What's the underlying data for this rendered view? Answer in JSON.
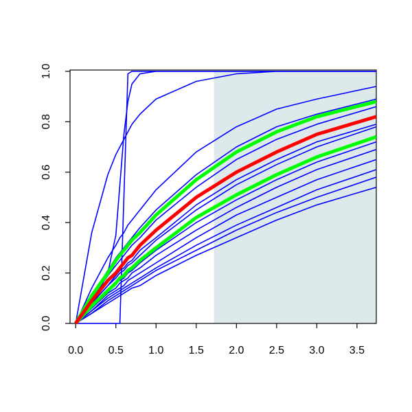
{
  "chart_data": {
    "type": "line",
    "x": [
      0,
      0.2,
      0.4,
      0.5,
      0.55,
      0.6,
      0.65,
      0.7,
      0.8,
      1,
      1.5,
      2,
      2.5,
      3,
      3.74
    ],
    "xlim": [
      -0.07,
      3.74
    ],
    "ylim": [
      0,
      1.005
    ],
    "xticks": [
      {
        "value": 0,
        "label": "0.0"
      },
      0.5,
      {
        "value": 1,
        "label": "1.0"
      },
      1.5,
      {
        "value": 2,
        "label": "2.0"
      },
      2.5,
      {
        "value": 3,
        "label": "3.0"
      },
      3.5
    ],
    "yticks": [
      {
        "value": 0,
        "label": "0.0"
      },
      0.2,
      0.4,
      0.6,
      0.8,
      {
        "value": 1,
        "label": "1.0"
      }
    ],
    "shaded_region": {
      "x": [
        1.72,
        3.74
      ],
      "y": [
        0,
        1
      ],
      "color": "#dde9ea"
    },
    "series": [
      {
        "color": "#0000ff",
        "values": [
          0,
          0,
          0,
          0,
          0,
          0.5,
          0.99,
          1,
          1,
          1,
          1,
          1,
          1,
          1,
          1
        ]
      },
      {
        "color": "#0000ff",
        "values": [
          0,
          0.07,
          0.2,
          0.35,
          0.55,
          0.75,
          0.88,
          0.95,
          0.99,
          1,
          1,
          1,
          1,
          1,
          1
        ]
      },
      {
        "color": "#0000ff",
        "values": [
          0,
          0.36,
          0.59,
          0.67,
          0.7,
          0.73,
          0.76,
          0.79,
          0.83,
          0.89,
          0.96,
          0.99,
          1,
          1,
          1
        ]
      },
      {
        "color": "#0000ff",
        "values": [
          0,
          0.14,
          0.26,
          0.31,
          0.34,
          0.36,
          0.39,
          0.41,
          0.45,
          0.53,
          0.68,
          0.78,
          0.85,
          0.89,
          0.94
        ]
      },
      {
        "color": "#0000ff",
        "values": [
          0,
          0.11,
          0.21,
          0.26,
          0.28,
          0.3,
          0.32,
          0.34,
          0.38,
          0.45,
          0.59,
          0.7,
          0.78,
          0.83,
          0.89
        ]
      },
      {
        "color": "#0000ff",
        "values": [
          0,
          0.1,
          0.19,
          0.23,
          0.25,
          0.27,
          0.29,
          0.31,
          0.34,
          0.41,
          0.54,
          0.65,
          0.73,
          0.79,
          0.86
        ]
      },
      {
        "color": "#0000ff",
        "values": [
          0,
          0.08,
          0.15,
          0.19,
          0.21,
          0.22,
          0.24,
          0.25,
          0.29,
          0.34,
          0.47,
          0.57,
          0.65,
          0.72,
          0.79
        ]
      },
      {
        "color": "#0000ff",
        "values": [
          0,
          0.08,
          0.15,
          0.18,
          0.2,
          0.21,
          0.23,
          0.24,
          0.27,
          0.33,
          0.45,
          0.55,
          0.63,
          0.7,
          0.78
        ]
      },
      {
        "color": "#0000ff",
        "values": [
          0,
          0.07,
          0.13,
          0.16,
          0.17,
          0.18,
          0.2,
          0.21,
          0.24,
          0.29,
          0.4,
          0.49,
          0.57,
          0.64,
          0.72
        ]
      },
      {
        "color": "#0000ff",
        "values": [
          0,
          0.06,
          0.12,
          0.14,
          0.16,
          0.17,
          0.18,
          0.2,
          0.22,
          0.27,
          0.37,
          0.46,
          0.54,
          0.61,
          0.69
        ]
      },
      {
        "color": "#0000ff",
        "values": [
          0,
          0.05,
          0.11,
          0.13,
          0.14,
          0.15,
          0.17,
          0.18,
          0.2,
          0.24,
          0.34,
          0.43,
          0.5,
          0.57,
          0.65
        ]
      },
      {
        "color": "#0000ff",
        "values": [
          0,
          0.05,
          0.1,
          0.12,
          0.13,
          0.14,
          0.15,
          0.16,
          0.18,
          0.22,
          0.31,
          0.39,
          0.46,
          0.53,
          0.61
        ]
      },
      {
        "color": "#0000ff",
        "values": [
          0,
          0.04,
          0.09,
          0.11,
          0.12,
          0.13,
          0.14,
          0.15,
          0.17,
          0.21,
          0.29,
          0.37,
          0.44,
          0.5,
          0.58
        ]
      },
      {
        "color": "#0000ff",
        "values": [
          0,
          0.04,
          0.08,
          0.1,
          0.11,
          0.12,
          0.13,
          0.14,
          0.15,
          0.19,
          0.27,
          0.34,
          0.41,
          0.47,
          0.54
        ]
      },
      {
        "color": "#00ff00",
        "values": [
          0,
          0.11,
          0.2,
          0.25,
          0.27,
          0.29,
          0.31,
          0.33,
          0.36,
          0.43,
          0.57,
          0.68,
          0.76,
          0.82,
          0.88
        ]
      },
      {
        "color": "#00ff00",
        "values": [
          0,
          0.07,
          0.13,
          0.16,
          0.18,
          0.19,
          0.21,
          0.22,
          0.25,
          0.3,
          0.42,
          0.51,
          0.59,
          0.66,
          0.74
        ]
      },
      {
        "color": "#ff0000",
        "values": [
          0,
          0.09,
          0.17,
          0.2,
          0.22,
          0.24,
          0.26,
          0.27,
          0.31,
          0.37,
          0.5,
          0.6,
          0.68,
          0.75,
          0.82
        ]
      }
    ]
  }
}
